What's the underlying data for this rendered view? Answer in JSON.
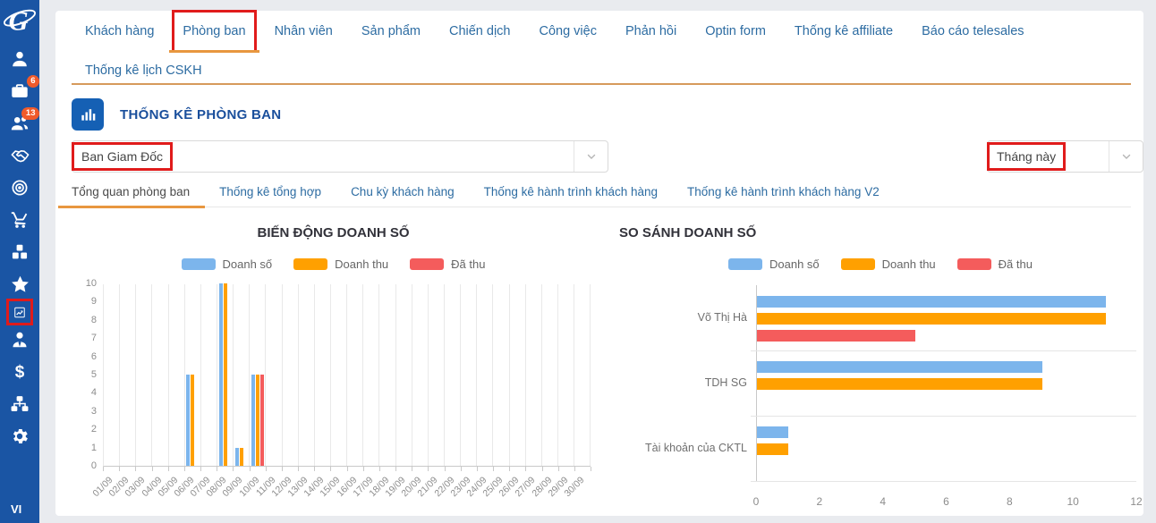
{
  "ui": {
    "annotation_color": "#e01b1b"
  },
  "sidebar": {
    "badges": {
      "briefcase": "6",
      "users": "13"
    },
    "language": "VI"
  },
  "nav": {
    "row1": [
      {
        "label": "Khách hàng"
      },
      {
        "label": "Phòng ban",
        "active": true,
        "annotated": true
      },
      {
        "label": "Nhân viên"
      },
      {
        "label": "Sản phẩm"
      },
      {
        "label": "Chiến dịch"
      },
      {
        "label": "Công việc"
      },
      {
        "label": "Phản hồi"
      },
      {
        "label": "Optin form"
      },
      {
        "label": "Thống kê affiliate"
      },
      {
        "label": "Báo cáo telesales"
      }
    ],
    "row2": [
      {
        "label": "Thống kê lịch CSKH"
      }
    ]
  },
  "section": {
    "title": "THỐNG KÊ PHÒNG BAN"
  },
  "filters": {
    "department": {
      "value": "Ban Giam Đốc"
    },
    "period": {
      "value": "Tháng này"
    }
  },
  "subtabs": [
    {
      "label": "Tổng quan phòng ban",
      "active": true
    },
    {
      "label": "Thống kê tổng hợp"
    },
    {
      "label": "Chu kỳ khách hàng"
    },
    {
      "label": "Thống kê hành trình khách hàng"
    },
    {
      "label": "Thống kê hành trình khách hàng V2"
    }
  ],
  "chart_data": [
    {
      "type": "bar",
      "title": "BIẾN ĐỘNG DOANH SỐ",
      "categories": [
        "01/09",
        "02/09",
        "03/09",
        "04/09",
        "05/09",
        "06/09",
        "07/09",
        "08/09",
        "09/09",
        "10/09",
        "11/09",
        "12/09",
        "13/09",
        "14/09",
        "15/09",
        "16/09",
        "17/09",
        "18/09",
        "19/09",
        "20/09",
        "21/09",
        "22/09",
        "23/09",
        "24/09",
        "25/09",
        "26/09",
        "27/09",
        "28/09",
        "29/09",
        "30/09"
      ],
      "series": [
        {
          "name": "Doanh số",
          "color": "#7cb5ec",
          "values": [
            0,
            0,
            0,
            0,
            0,
            5,
            0,
            10,
            1,
            5,
            0,
            0,
            0,
            0,
            0,
            0,
            0,
            0,
            0,
            0,
            0,
            0,
            0,
            0,
            0,
            0,
            0,
            0,
            0,
            0
          ]
        },
        {
          "name": "Doanh thu",
          "color": "#ffa000",
          "values": [
            0,
            0,
            0,
            0,
            0,
            5,
            0,
            10,
            1,
            5,
            0,
            0,
            0,
            0,
            0,
            0,
            0,
            0,
            0,
            0,
            0,
            0,
            0,
            0,
            0,
            0,
            0,
            0,
            0,
            0
          ]
        },
        {
          "name": "Đã thu",
          "color": "#f45c5c",
          "values": [
            0,
            0,
            0,
            0,
            0,
            0,
            0,
            0,
            0,
            5,
            0,
            0,
            0,
            0,
            0,
            0,
            0,
            0,
            0,
            0,
            0,
            0,
            0,
            0,
            0,
            0,
            0,
            0,
            0,
            0
          ]
        }
      ],
      "ylim": [
        0,
        10
      ],
      "yticks": [
        0,
        1,
        2,
        3,
        4,
        5,
        6,
        7,
        8,
        9,
        10
      ],
      "legend_position": "top",
      "grid": "vertical"
    },
    {
      "type": "horizontal-bar",
      "title": "SO SÁNH DOANH SỐ",
      "categories": [
        "Võ Thị Hà",
        "TDH SG",
        "Tài khoản của CKTL"
      ],
      "series": [
        {
          "name": "Doanh số",
          "color": "#7cb5ec",
          "values": [
            11,
            9,
            1
          ]
        },
        {
          "name": "Doanh thu",
          "color": "#ffa000",
          "values": [
            11,
            9,
            1
          ]
        },
        {
          "name": "Đã thu",
          "color": "#f45c5c",
          "values": [
            5,
            0,
            0
          ]
        }
      ],
      "xlim": [
        0,
        12
      ],
      "xticks": [
        0,
        2,
        4,
        6,
        8,
        10,
        12
      ],
      "legend_position": "top"
    }
  ]
}
